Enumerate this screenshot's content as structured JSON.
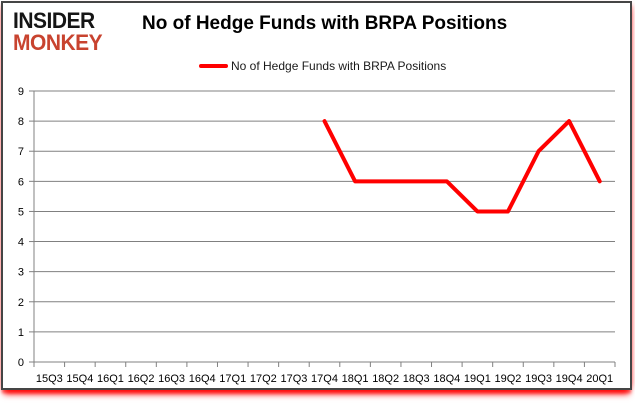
{
  "brand": {
    "line1": "INSIDER",
    "line2": "MONKEY",
    "color1": "#151515",
    "color2": "#c8432f"
  },
  "header": {
    "title": "No of Hedge Funds with BRPA Positions"
  },
  "legend": {
    "label": "No of Hedge Funds with BRPA Positions",
    "color": "#ff0000"
  },
  "colors": {
    "series_line": "#ff0000",
    "grid": "#808080",
    "axis": "#808080",
    "tick_label": "#000000",
    "card_border": "#454545",
    "bottom_glow": "#ff0000",
    "background": "#ffffff"
  },
  "chart_data": {
    "type": "line",
    "title": "No of Hedge Funds with BRPA Positions",
    "categories": [
      "15Q3",
      "15Q4",
      "16Q1",
      "16Q2",
      "16Q3",
      "16Q4",
      "17Q1",
      "17Q2",
      "17Q3",
      "17Q4",
      "18Q1",
      "18Q2",
      "18Q3",
      "18Q4",
      "19Q1",
      "19Q2",
      "19Q3",
      "19Q4",
      "20Q1"
    ],
    "series": [
      {
        "name": "No of Hedge Funds with BRPA Positions",
        "color": "#ff0000",
        "values": [
          null,
          null,
          null,
          null,
          null,
          null,
          null,
          null,
          null,
          8,
          6,
          6,
          6,
          6,
          5,
          5,
          7,
          8,
          6
        ]
      }
    ],
    "xlabel": "",
    "ylabel": "",
    "ylim": [
      0,
      9
    ],
    "ytick_step": 1,
    "grid": true,
    "legend_position": "top-center"
  }
}
